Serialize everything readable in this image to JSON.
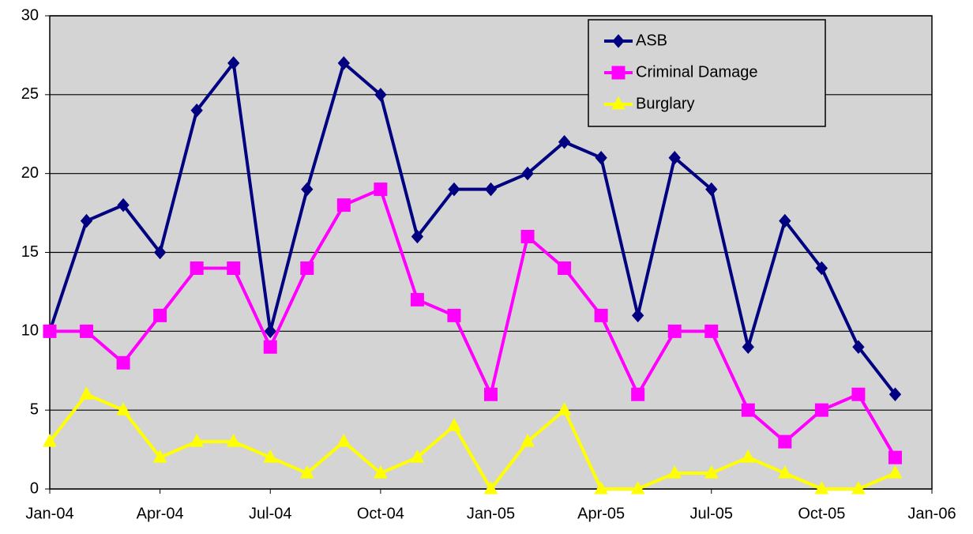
{
  "chart_data": {
    "type": "line",
    "x": [
      "2004-01",
      "2004-02",
      "2004-03",
      "2004-04",
      "2004-05",
      "2004-06",
      "2004-07",
      "2004-08",
      "2004-09",
      "2004-10",
      "2004-11",
      "2004-12",
      "2005-01",
      "2005-02",
      "2005-03",
      "2005-04",
      "2005-05",
      "2005-06",
      "2005-07",
      "2005-08",
      "2005-09",
      "2005-10",
      "2005-11",
      "2005-12"
    ],
    "series": [
      {
        "name": "ASB",
        "color": "#000080",
        "marker": "diamond",
        "values": [
          10,
          17,
          18,
          15,
          24,
          27,
          10,
          19,
          27,
          25,
          16,
          19,
          19,
          20,
          22,
          21,
          11,
          21,
          19,
          9,
          17,
          14,
          9,
          6
        ]
      },
      {
        "name": "Criminal Damage",
        "color": "#ff00ff",
        "marker": "square",
        "values": [
          10,
          10,
          8,
          11,
          14,
          14,
          9,
          14,
          18,
          19,
          12,
          11,
          6,
          16,
          14,
          11,
          6,
          10,
          10,
          5,
          3,
          5,
          6,
          2
        ]
      },
      {
        "name": "Burglary",
        "color": "#ffff00",
        "marker": "triangle",
        "values": [
          3,
          6,
          5,
          2,
          3,
          3,
          2,
          1,
          3,
          1,
          2,
          4,
          0,
          3,
          5,
          0,
          0,
          1,
          1,
          2,
          1,
          0,
          0,
          1
        ]
      }
    ],
    "xlim": [
      "2004-01",
      "2006-01"
    ],
    "xticks": [
      {
        "value": "2004-01",
        "label": "Jan-04"
      },
      {
        "value": "2004-04",
        "label": "Apr-04"
      },
      {
        "value": "2004-07",
        "label": "Jul-04"
      },
      {
        "value": "2004-10",
        "label": "Oct-04"
      },
      {
        "value": "2005-01",
        "label": "Jan-05"
      },
      {
        "value": "2005-04",
        "label": "Apr-05"
      },
      {
        "value": "2005-07",
        "label": "Jul-05"
      },
      {
        "value": "2005-10",
        "label": "Oct-05"
      },
      {
        "value": "2006-01",
        "label": "Jan-06"
      }
    ],
    "ylim": [
      0,
      30
    ],
    "yticks": [
      0,
      5,
      10,
      15,
      20,
      25,
      30
    ],
    "grid": true,
    "legend": "upper right",
    "background": "#d4d4d4"
  }
}
